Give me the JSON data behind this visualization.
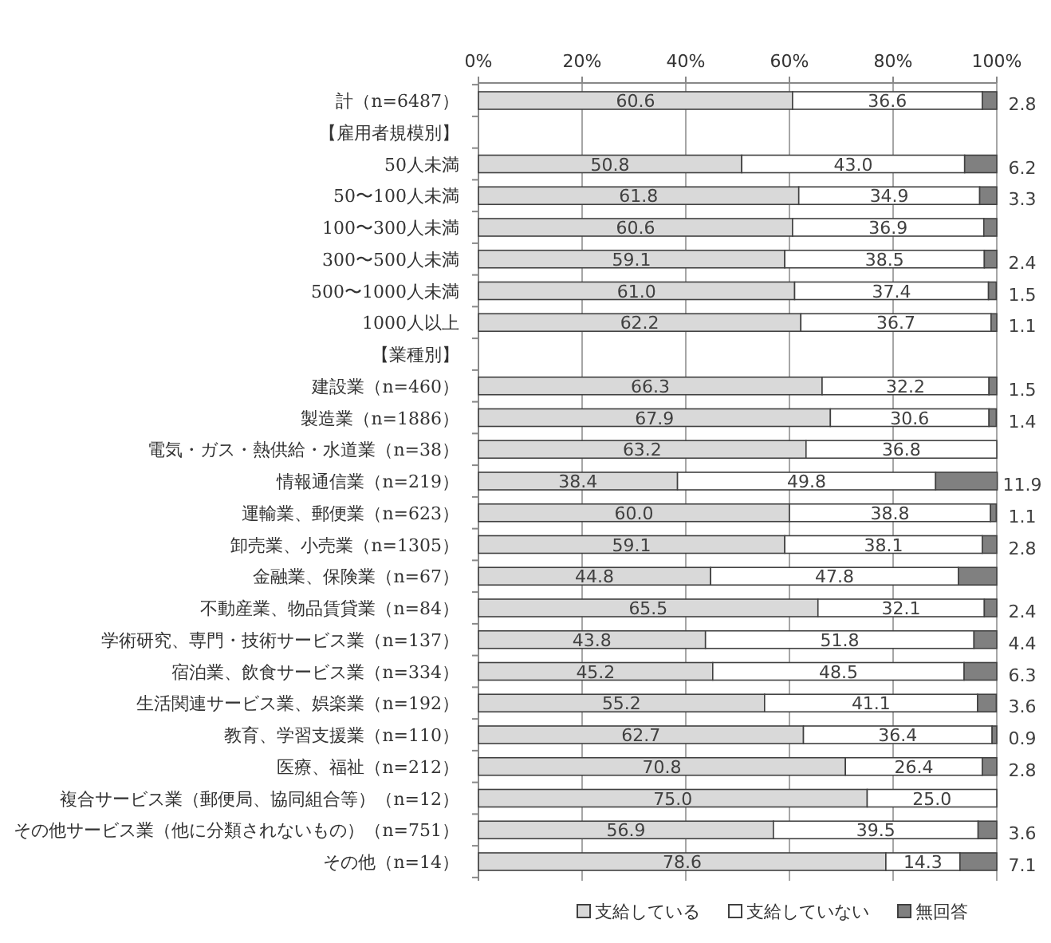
{
  "chart_data": {
    "type": "bar",
    "orientation": "horizontal",
    "stacked": true,
    "grid": "x",
    "legend": "bottom",
    "categories": [
      "計（n=6487）",
      "【雇用者規模別】",
      "50人未満",
      "50〜100人未満",
      "100〜300人未満",
      "300〜500人未満",
      "500〜1000人未満",
      "1000人以上",
      "【業種別】",
      "建設業（n=460）",
      "製造業（n=1886）",
      "電気・ガス・熱供給・水道業（n=38）",
      "情報通信業（n=219）",
      "運輸業、郵便業（n=623）",
      "卸売業、小売業（n=1305）",
      "金融業、保険業（n=67）",
      "不動産業、物品賃貸業（n=84）",
      "学術研究、専門・技術サービス業（n=137）",
      "宿泊業、飲食サービス業（n=334）",
      "生活関連サービス業、娯楽業（n=192）",
      "教育、学習支援業（n=110）",
      "医療、福祉（n=212）",
      "複合サービス業（郵便局、協同組合等）（n=12）",
      "その他サービス業（他に分類されないもの）（n=751）",
      "その他（n=14）"
    ],
    "xlim": [
      0,
      100
    ],
    "xticks": [
      {
        "value": 0,
        "label": "0%"
      },
      {
        "value": 20,
        "label": "20%"
      },
      {
        "value": 40,
        "label": "40%"
      },
      {
        "value": 60,
        "label": "60%"
      },
      {
        "value": 80,
        "label": "80%"
      },
      {
        "value": 100,
        "label": "100%"
      }
    ],
    "series": [
      {
        "name": "支給している",
        "color": "#d9d9d9",
        "values": [
          60.6,
          null,
          50.8,
          61.8,
          60.6,
          59.1,
          61.0,
          62.2,
          null,
          66.3,
          67.9,
          63.2,
          38.4,
          60.0,
          59.1,
          44.8,
          65.5,
          43.8,
          45.2,
          55.2,
          62.7,
          70.8,
          75.0,
          56.9,
          78.6
        ],
        "value_labels": [
          "60.6",
          null,
          "50.8",
          "61.8",
          "60.6",
          "59.1",
          "61.0",
          "62.2",
          null,
          "66.3",
          "67.9",
          "63.2",
          "38.4",
          "60.0",
          "59.1",
          "44.8",
          "65.5",
          "43.8",
          "45.2",
          "55.2",
          "62.7",
          "70.8",
          "75.0",
          "56.9",
          "78.6"
        ]
      },
      {
        "name": "支給していない",
        "color": "#ffffff",
        "values": [
          36.6,
          null,
          43.0,
          34.9,
          36.9,
          38.5,
          37.4,
          36.7,
          null,
          32.2,
          30.6,
          36.8,
          49.8,
          38.8,
          38.1,
          47.8,
          32.1,
          51.8,
          48.5,
          41.1,
          36.4,
          26.4,
          25.0,
          39.5,
          14.3
        ],
        "value_labels": [
          "36.6",
          null,
          "43.0",
          "34.9",
          "36.9",
          "38.5",
          "37.4",
          "36.7",
          null,
          "32.2",
          "30.6",
          "36.8",
          "49.8",
          "38.8",
          "38.1",
          "47.8",
          "32.1",
          "51.8",
          "48.5",
          "41.1",
          "36.4",
          "26.4",
          "25.0",
          "39.5",
          "14.3"
        ]
      },
      {
        "name": "無回答",
        "color": "#808080",
        "values": [
          2.8,
          null,
          6.2,
          3.3,
          2.5,
          2.4,
          1.5,
          1.1,
          null,
          1.5,
          1.4,
          0,
          11.9,
          1.1,
          2.8,
          7.4,
          2.4,
          4.4,
          6.3,
          3.6,
          0.9,
          2.8,
          0,
          3.6,
          7.1
        ],
        "value_labels": [
          "2.8",
          null,
          "6.2",
          "3.3",
          null,
          "2.4",
          "1.5",
          "1.1",
          null,
          "1.5",
          "1.4",
          null,
          "11.9",
          "1.1",
          "2.8",
          null,
          "2.4",
          "4.4",
          "6.3",
          "3.6",
          "0.9",
          "2.8",
          null,
          "3.6",
          "7.1"
        ]
      }
    ]
  }
}
